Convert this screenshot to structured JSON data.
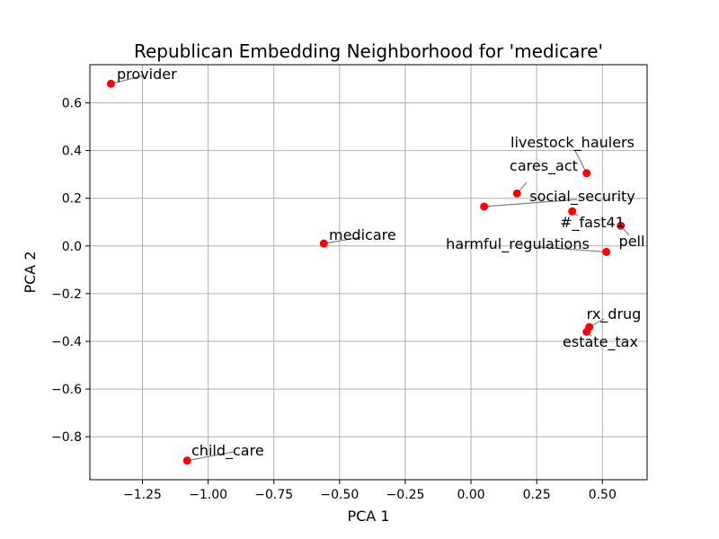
{
  "chart_data": {
    "type": "scatter",
    "title": "Republican Embedding Neighborhood for 'medicare'",
    "xlabel": "PCA 1",
    "ylabel": "PCA 2",
    "xlim": [
      -1.45,
      0.67
    ],
    "ylim": [
      -0.98,
      0.76
    ],
    "grid": true,
    "point_color": "#ff0000",
    "leader_color": "#808080",
    "x_ticks": [
      {
        "value": -1.25,
        "label": "−1.25"
      },
      {
        "value": -1.0,
        "label": "−1.00"
      },
      {
        "value": -0.75,
        "label": "−0.75"
      },
      {
        "value": -0.5,
        "label": "−0.50"
      },
      {
        "value": -0.25,
        "label": "−0.25"
      },
      {
        "value": 0.0,
        "label": "0.00"
      },
      {
        "value": 0.25,
        "label": "0.25"
      },
      {
        "value": 0.5,
        "label": "0.50"
      }
    ],
    "y_ticks": [
      {
        "value": 0.6,
        "label": "0.6"
      },
      {
        "value": 0.4,
        "label": "0.4"
      },
      {
        "value": 0.2,
        "label": "0.2"
      },
      {
        "value": 0.0,
        "label": "0.0"
      },
      {
        "value": -0.2,
        "label": "−0.2"
      },
      {
        "value": -0.4,
        "label": "−0.4"
      },
      {
        "value": -0.6,
        "label": "−0.6"
      },
      {
        "value": -0.8,
        "label": "−0.8"
      }
    ],
    "points": [
      {
        "label": "provider",
        "x": -1.37,
        "y": 0.68
      },
      {
        "label": "medicare",
        "x": -0.56,
        "y": 0.01
      },
      {
        "label": "child_care",
        "x": -1.08,
        "y": -0.9
      },
      {
        "label": "livestock_haulers",
        "x": 0.44,
        "y": 0.305
      },
      {
        "label": "cares_act",
        "x": 0.175,
        "y": 0.22
      },
      {
        "label": "social_security",
        "x": 0.05,
        "y": 0.165
      },
      {
        "label": "#_fast41",
        "x": 0.385,
        "y": 0.145
      },
      {
        "label": "pell",
        "x": 0.57,
        "y": 0.085
      },
      {
        "label": "harmful_regulations",
        "x": 0.515,
        "y": -0.025
      },
      {
        "label": "rx_drug",
        "x": 0.45,
        "y": -0.34
      },
      {
        "label": "estate_tax",
        "x": 0.44,
        "y": -0.36
      }
    ]
  }
}
